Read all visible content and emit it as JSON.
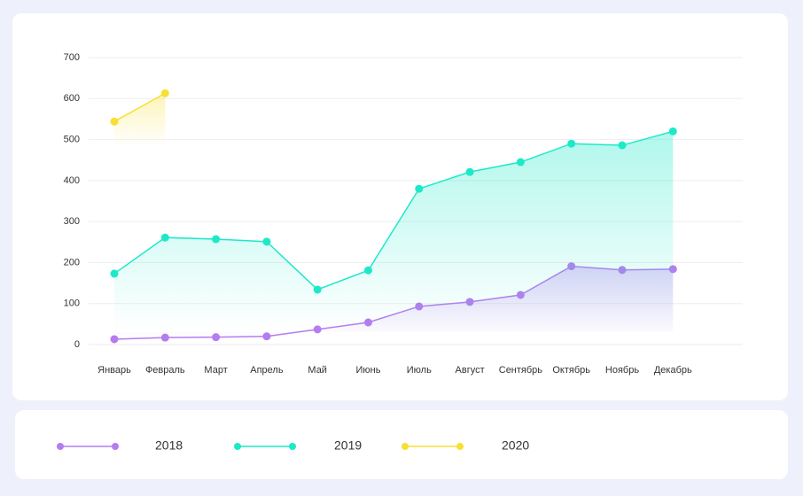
{
  "chart_data": {
    "type": "line",
    "categories": [
      "Январь",
      "Февраль",
      "Март",
      "Апрель",
      "Май",
      "Июнь",
      "Июль",
      "Август",
      "Сентябрь",
      "Октябрь",
      "Ноябрь",
      "Декабрь"
    ],
    "series": [
      {
        "name": "2018",
        "color": "#b57cf0",
        "values": [
          13,
          17,
          18,
          20,
          37,
          54,
          93,
          104,
          121,
          191,
          182,
          184
        ]
      },
      {
        "name": "2019",
        "color": "#1de9c9",
        "values": [
          173,
          261,
          257,
          251,
          134,
          181,
          380,
          421,
          445,
          490,
          486,
          520
        ]
      },
      {
        "name": "2020",
        "color": "#f7e034",
        "values": [
          544,
          613,
          null,
          null,
          null,
          null,
          null,
          null,
          null,
          null,
          null,
          null
        ]
      }
    ],
    "ylim": [
      0,
      700
    ],
    "yticks": [
      0,
      100,
      200,
      300,
      400,
      500,
      600,
      700
    ],
    "grid": true,
    "legend": "bottom"
  }
}
